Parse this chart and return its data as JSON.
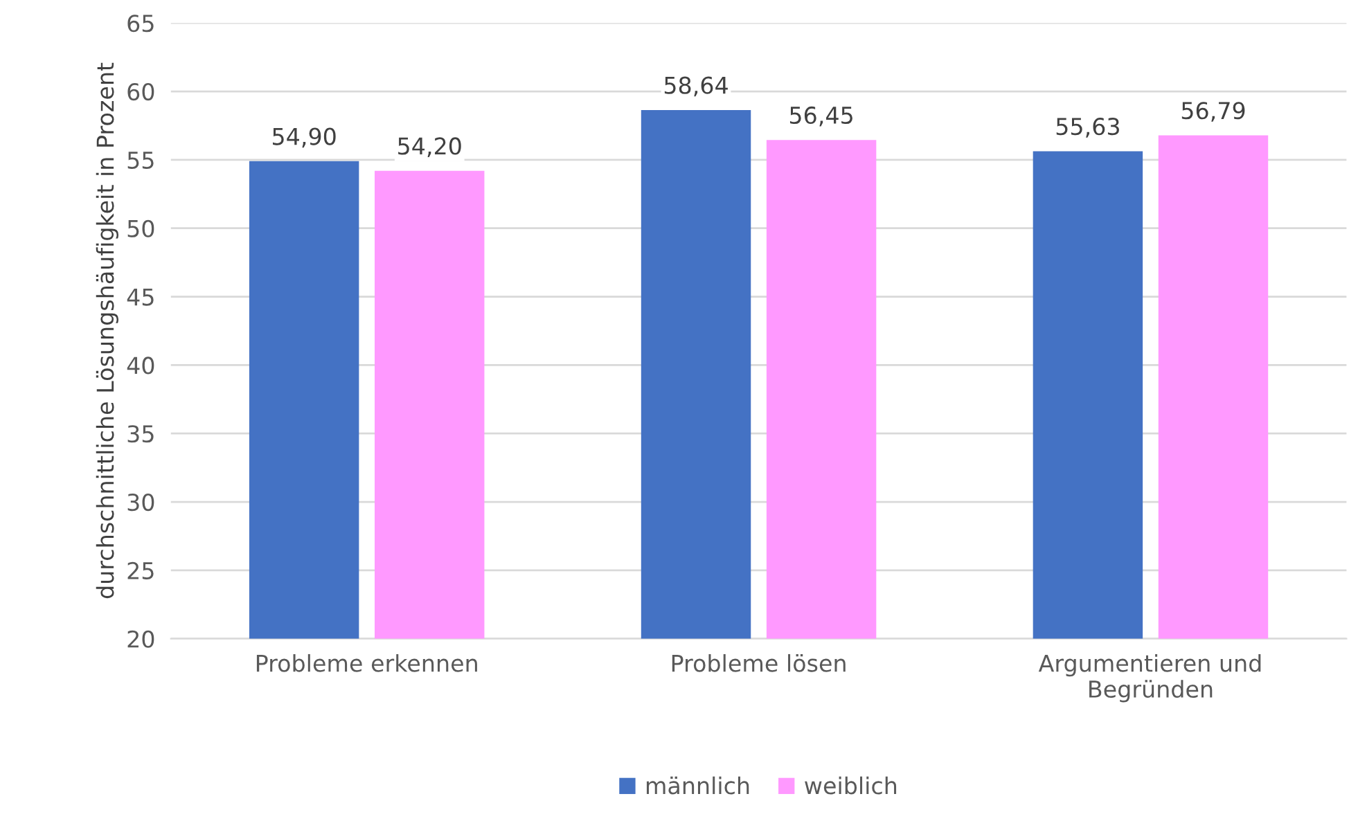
{
  "chart_data": {
    "type": "bar",
    "ylabel": "durchschnittliche Lösungshäufigkeit in Prozent",
    "categories": [
      "Probleme erkennen",
      "Probleme lösen",
      "Argumentieren und\nBegründen"
    ],
    "series": [
      {
        "name": "männlich",
        "color": "#4472c4",
        "values": [
          54.9,
          58.64,
          55.63
        ],
        "value_labels": [
          "54,90",
          "58,64",
          "55,63"
        ]
      },
      {
        "name": "weiblich",
        "color": "#ff99ff",
        "values": [
          54.2,
          56.45,
          56.79
        ],
        "value_labels": [
          "54,20",
          "56,45",
          "56,79"
        ]
      }
    ],
    "ylim": [
      20,
      65
    ],
    "yticks": [
      20,
      25,
      30,
      35,
      40,
      45,
      50,
      55,
      60,
      65
    ],
    "grid": "y",
    "legend": "bottom"
  }
}
